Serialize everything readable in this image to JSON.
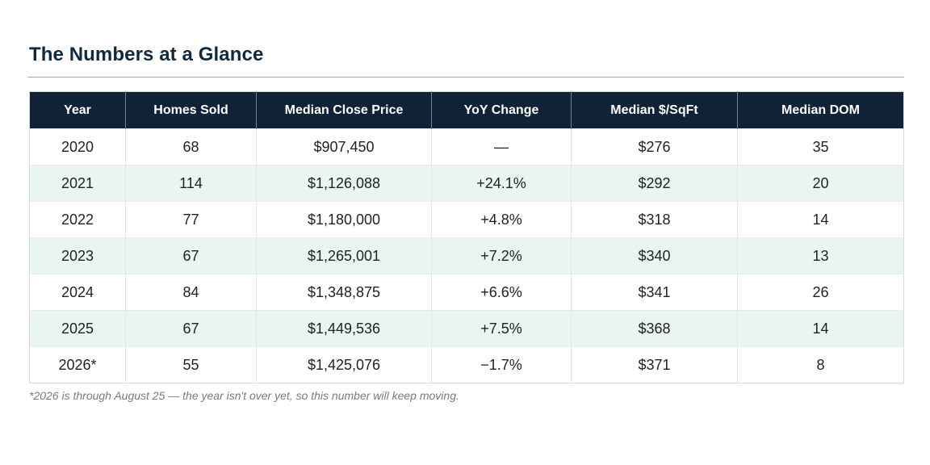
{
  "title": "The Numbers at a Glance",
  "table": {
    "headers": [
      "Year",
      "Homes Sold",
      "Median Close Price",
      "YoY Change",
      "Median $/SqFt",
      "Median DOM"
    ],
    "rows": [
      [
        "2020",
        "68",
        "$907,450",
        "—",
        "$276",
        "35"
      ],
      [
        "2021",
        "114",
        "$1,126,088",
        "+24.1%",
        "$292",
        "20"
      ],
      [
        "2022",
        "77",
        "$1,180,000",
        "+4.8%",
        "$318",
        "14"
      ],
      [
        "2023",
        "67",
        "$1,265,001",
        "+7.2%",
        "$340",
        "13"
      ],
      [
        "2024",
        "84",
        "$1,348,875",
        "+6.6%",
        "$341",
        "26"
      ],
      [
        "2025",
        "67",
        "$1,449,536",
        "+7.5%",
        "$368",
        "14"
      ],
      [
        "2026*",
        "55",
        "$1,425,076",
        "−1.7%",
        "$371",
        "8"
      ]
    ]
  },
  "footnote": "*2026 is through August 25 — the year isn't over yet, so this number will keep moving.",
  "colors": {
    "header_bg": "#0f2238",
    "title": "#0f2a3f",
    "alt_row_bg": "#e9f5ef",
    "rule": "#8fb3aa"
  }
}
